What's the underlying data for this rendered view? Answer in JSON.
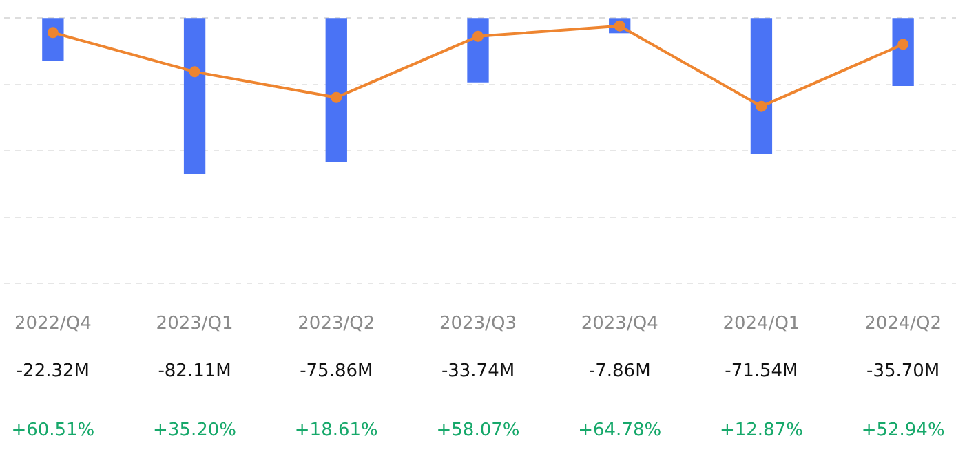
{
  "chart_data": {
    "type": "bar",
    "categories": [
      "2022/Q4",
      "2023/Q1",
      "2023/Q2",
      "2023/Q3",
      "2023/Q4",
      "2024/Q1",
      "2024/Q2"
    ],
    "series": [
      {
        "color": "#4a73f5",
        "values": [
          -22.32,
          -82.11,
          -75.86,
          -33.74,
          -7.86,
          -71.54,
          -35.7
        ],
        "value_labels": [
          "-22.32M",
          "-82.11M",
          "-75.86M",
          "-33.74M",
          "-7.86M",
          "-71.54M",
          "-35.70M"
        ]
      },
      {
        "type": "line",
        "axis": "y2",
        "color": "#ee8530",
        "values": [
          60.51,
          35.2,
          18.61,
          58.07,
          64.78,
          12.87,
          52.94
        ],
        "value_labels": [
          "+60.51%",
          "+35.20%",
          "+18.61%",
          "+58.07%",
          "+64.78%",
          "+12.87%",
          "+52.94%"
        ]
      }
    ],
    "ylim": [
      -140,
      0
    ],
    "yticks": [
      {
        "value": -140,
        "label": null
      },
      {
        "value": -105,
        "label": null
      },
      {
        "value": -70,
        "label": null
      },
      {
        "value": -35,
        "label": null
      },
      {
        "value": 0,
        "label": null
      }
    ],
    "grid": "y",
    "tick_labels": "x",
    "legend": false,
    "marker": "circle"
  }
}
